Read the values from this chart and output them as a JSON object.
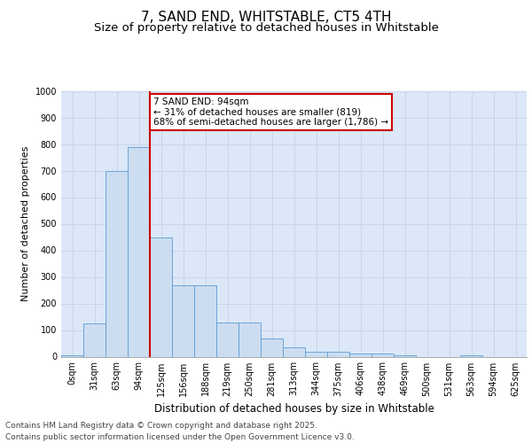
{
  "title": "7, SAND END, WHITSTABLE, CT5 4TH",
  "subtitle": "Size of property relative to detached houses in Whitstable",
  "xlabel": "Distribution of detached houses by size in Whitstable",
  "ylabel": "Number of detached properties",
  "categories": [
    "0sqm",
    "31sqm",
    "63sqm",
    "94sqm",
    "125sqm",
    "156sqm",
    "188sqm",
    "219sqm",
    "250sqm",
    "281sqm",
    "313sqm",
    "344sqm",
    "375sqm",
    "406sqm",
    "438sqm",
    "469sqm",
    "500sqm",
    "531sqm",
    "563sqm",
    "594sqm",
    "625sqm"
  ],
  "values": [
    5,
    125,
    700,
    790,
    450,
    270,
    270,
    130,
    130,
    68,
    35,
    20,
    20,
    12,
    12,
    5,
    0,
    0,
    5,
    0,
    0
  ],
  "bar_color": "#ccddf0",
  "bar_edge_color": "#5b9bd5",
  "vline_x": 3,
  "vline_color": "#cc0000",
  "annotation_text": "7 SAND END: 94sqm\n← 31% of detached houses are smaller (819)\n68% of semi-detached houses are larger (1,786) →",
  "annotation_box_color": "#cc0000",
  "ylim": [
    0,
    1000
  ],
  "yticks": [
    0,
    100,
    200,
    300,
    400,
    500,
    600,
    700,
    800,
    900,
    1000
  ],
  "grid_color": "#c8d4e8",
  "background_color": "#dce8f8",
  "footer_line1": "Contains HM Land Registry data © Crown copyright and database right 2025.",
  "footer_line2": "Contains public sector information licensed under the Open Government Licence v3.0.",
  "title_fontsize": 11,
  "subtitle_fontsize": 9.5,
  "xlabel_fontsize": 8.5,
  "ylabel_fontsize": 8,
  "tick_fontsize": 7,
  "annotation_fontsize": 7.5,
  "footer_fontsize": 6.5
}
